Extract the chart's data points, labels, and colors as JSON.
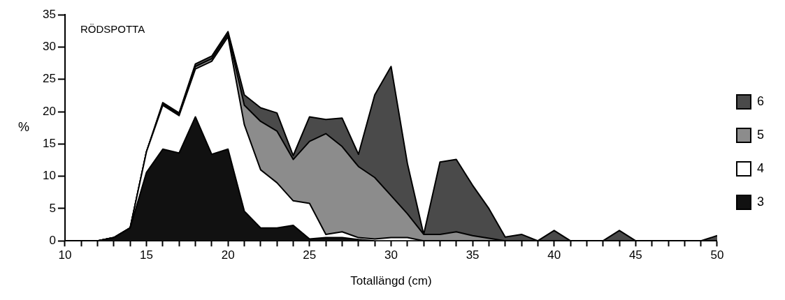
{
  "chart_data": {
    "type": "area",
    "stacked": true,
    "annotations": [
      "RÖDSPOTTA"
    ],
    "xlabel": "Totallängd (cm)",
    "ylabel": "%",
    "x": [
      10,
      11,
      12,
      13,
      14,
      15,
      16,
      17,
      18,
      19,
      20,
      21,
      22,
      23,
      24,
      25,
      26,
      27,
      28,
      29,
      30,
      31,
      32,
      33,
      34,
      35,
      36,
      37,
      38,
      39,
      40,
      41,
      42,
      43,
      44,
      45,
      46,
      47,
      48,
      49,
      50
    ],
    "series": [
      {
        "name": "3",
        "color": "#111111",
        "values": [
          0,
          0,
          0,
          0.5,
          2,
          10.6,
          14.2,
          13.6,
          19.2,
          13.4,
          14.2,
          4.6,
          2.0,
          2.0,
          2.4,
          0.3,
          0.5,
          0.5,
          0.2,
          0,
          0,
          0,
          0,
          0,
          0,
          0,
          0,
          0,
          0,
          0,
          0,
          0,
          0,
          0,
          0,
          0,
          0,
          0,
          0,
          0,
          0
        ]
      },
      {
        "name": "4",
        "color": "#ffffff",
        "values": [
          0,
          0,
          0,
          0,
          0,
          3.2,
          6.8,
          5.8,
          7.4,
          14.4,
          17.4,
          13.4,
          9.0,
          7.0,
          3.8,
          5.5,
          0.5,
          0.9,
          0.3,
          0.3,
          0.5,
          0.5,
          0,
          0,
          0,
          0,
          0,
          0,
          0,
          0,
          0,
          0,
          0,
          0,
          0,
          0,
          0,
          0,
          0,
          0,
          0
        ]
      },
      {
        "name": "5",
        "color": "#8c8c8c",
        "values": [
          0,
          0,
          0,
          0,
          0,
          0,
          0.2,
          0.2,
          0.4,
          0.4,
          0.4,
          3.0,
          7.5,
          8.0,
          6.4,
          9.6,
          15.6,
          13.2,
          11.0,
          9.5,
          6.5,
          3.7,
          1.0,
          1.0,
          1.4,
          0.8,
          0.4,
          0,
          0,
          0,
          0,
          0,
          0,
          0,
          0,
          0,
          0,
          0,
          0,
          0,
          0
        ]
      },
      {
        "name": "6",
        "color": "#4a4a4a",
        "values": [
          0,
          0,
          0,
          0,
          0,
          0,
          0.2,
          0.2,
          0.4,
          0.4,
          0.4,
          1.6,
          2.1,
          2.8,
          0.6,
          3.8,
          2.2,
          4.4,
          1.9,
          12.8,
          20.0,
          7.8,
          0,
          11.2,
          11.2,
          7.8,
          4.6,
          0.6,
          1.0,
          0,
          1.6,
          0,
          0,
          0,
          1.6,
          0,
          0,
          0,
          0,
          0,
          0.8
        ]
      }
    ],
    "xlim": [
      10,
      50
    ],
    "xticks": [
      10,
      {
        "value": 11,
        "label": null
      },
      {
        "value": 12,
        "label": null
      },
      {
        "value": 13,
        "label": null
      },
      {
        "value": 14,
        "label": null
      },
      15,
      {
        "value": 16,
        "label": null
      },
      {
        "value": 17,
        "label": null
      },
      {
        "value": 18,
        "label": null
      },
      {
        "value": 19,
        "label": null
      },
      20,
      {
        "value": 21,
        "label": null
      },
      {
        "value": 22,
        "label": null
      },
      {
        "value": 23,
        "label": null
      },
      {
        "value": 24,
        "label": null
      },
      25,
      {
        "value": 26,
        "label": null
      },
      {
        "value": 27,
        "label": null
      },
      {
        "value": 28,
        "label": null
      },
      {
        "value": 29,
        "label": null
      },
      30,
      {
        "value": 31,
        "label": null
      },
      {
        "value": 32,
        "label": null
      },
      {
        "value": 33,
        "label": null
      },
      {
        "value": 34,
        "label": null
      },
      35,
      {
        "value": 36,
        "label": null
      },
      {
        "value": 37,
        "label": null
      },
      {
        "value": 38,
        "label": null
      },
      {
        "value": 39,
        "label": null
      },
      40,
      {
        "value": 41,
        "label": null
      },
      {
        "value": 42,
        "label": null
      },
      {
        "value": 43,
        "label": null
      },
      {
        "value": 44,
        "label": null
      },
      45,
      {
        "value": 46,
        "label": null
      },
      {
        "value": 47,
        "label": null
      },
      {
        "value": 48,
        "label": null
      },
      {
        "value": 49,
        "label": null
      },
      50
    ],
    "ylim": [
      0,
      35
    ],
    "yticks": [
      0,
      5,
      10,
      15,
      20,
      25,
      30,
      35
    ],
    "grid": false,
    "legend": "right"
  }
}
